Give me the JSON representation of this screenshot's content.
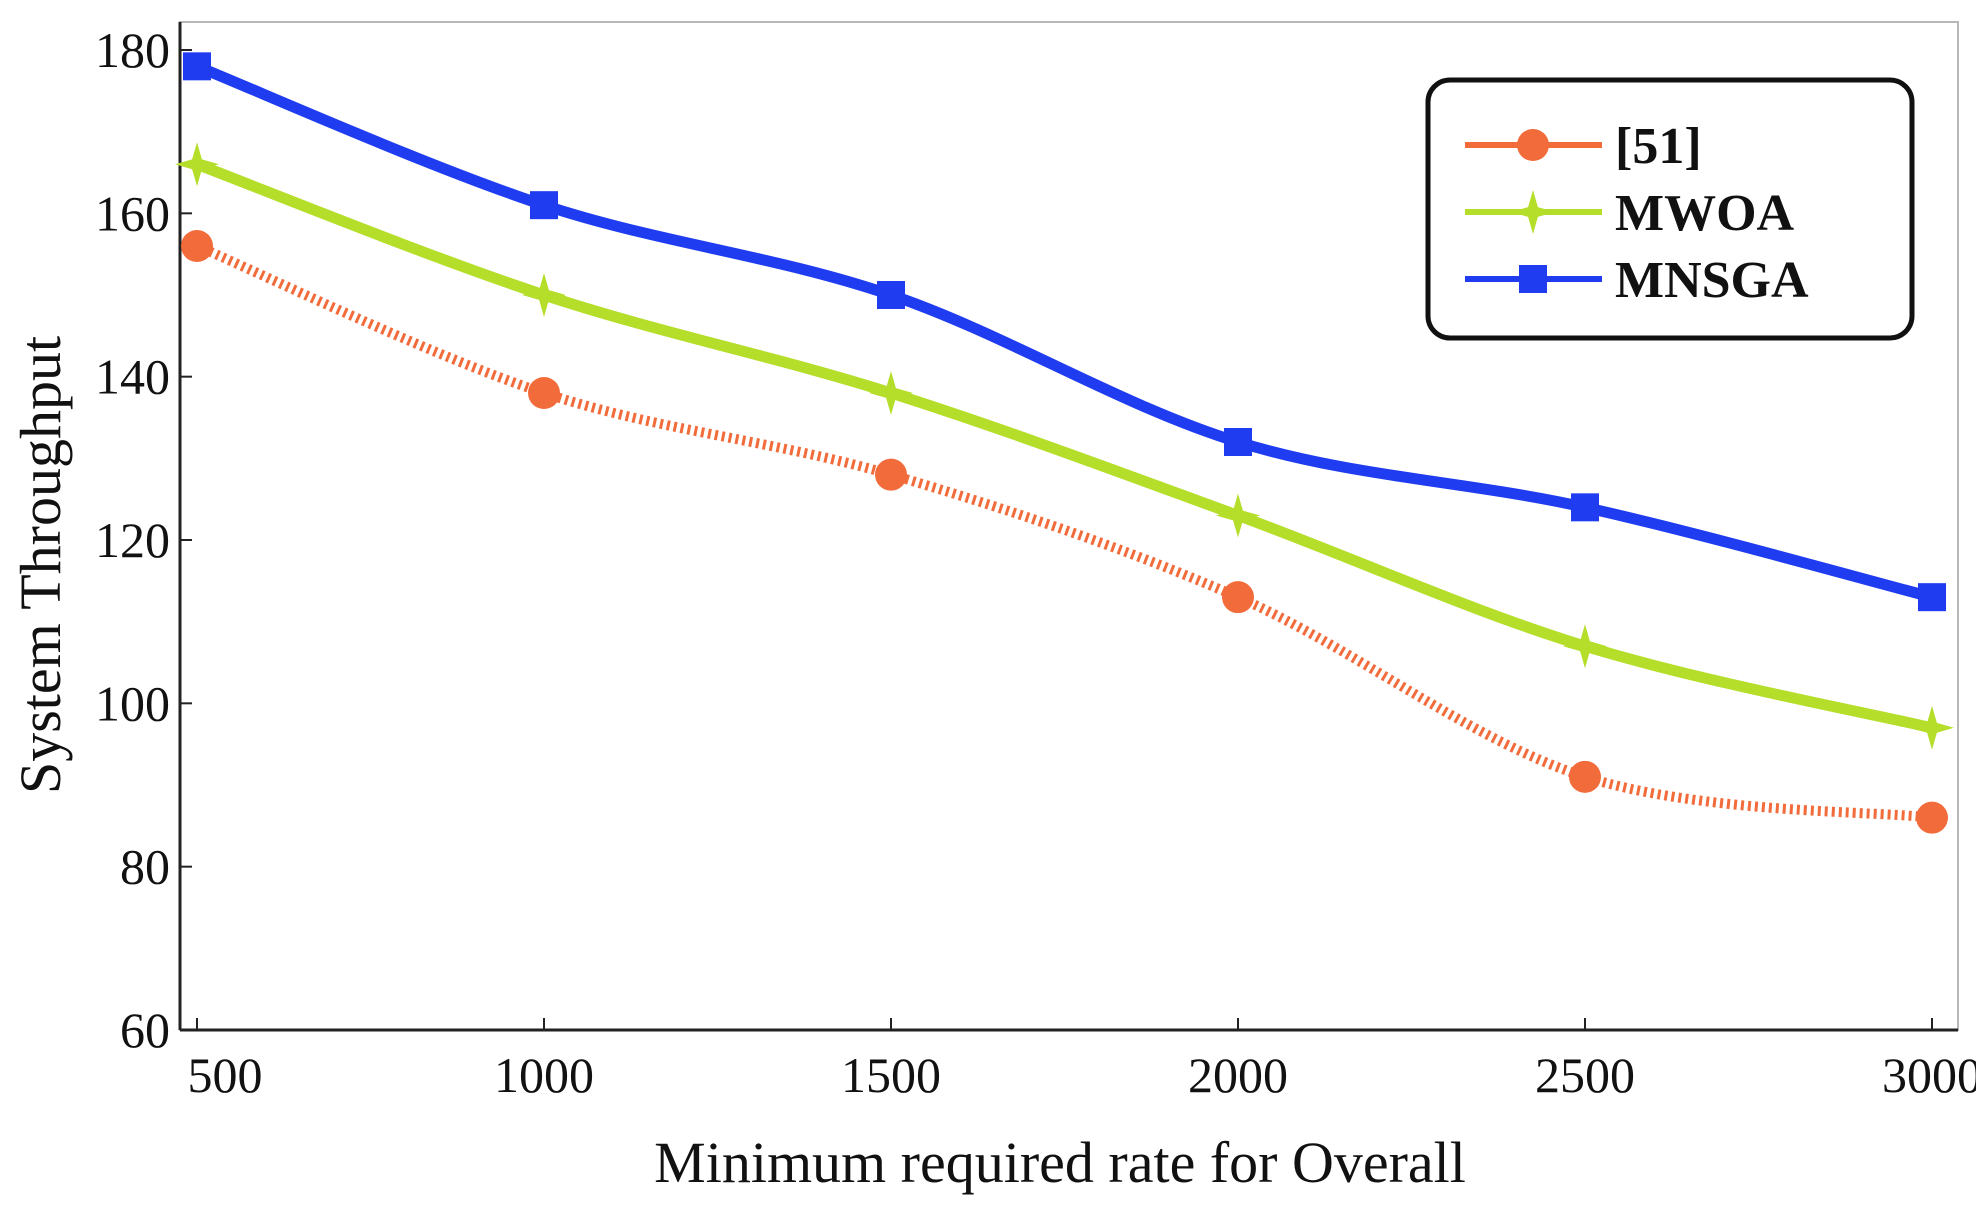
{
  "chart_data": {
    "type": "line",
    "xlabel": "Minimum required rate for Overall",
    "ylabel": "System Throughput",
    "x": [
      500,
      1000,
      1500,
      2000,
      2500,
      3000
    ],
    "xticks": [
      "500",
      "1000",
      "1500",
      "2000",
      "2500",
      "3000"
    ],
    "yticks": [
      "60",
      "80",
      "100",
      "120",
      "140",
      "160",
      "180"
    ],
    "xlim": [
      500,
      3000
    ],
    "ylim": [
      60,
      180
    ],
    "grid": false,
    "legend_position": "top-right",
    "series": [
      {
        "name": "[51]",
        "values": [
          156,
          138,
          128,
          113,
          91,
          86
        ],
        "color": "#f26b3a",
        "marker": "circle",
        "line_style": "dotted"
      },
      {
        "name": "MWOA",
        "values": [
          166,
          150,
          138,
          123,
          107,
          97
        ],
        "color": "#b5de2b",
        "marker": "star",
        "line_style": "solid"
      },
      {
        "name": "MNSGA",
        "values": [
          178,
          161,
          150,
          132,
          124,
          113
        ],
        "color": "#1f3cf0",
        "marker": "square",
        "line_style": "solid"
      }
    ]
  }
}
